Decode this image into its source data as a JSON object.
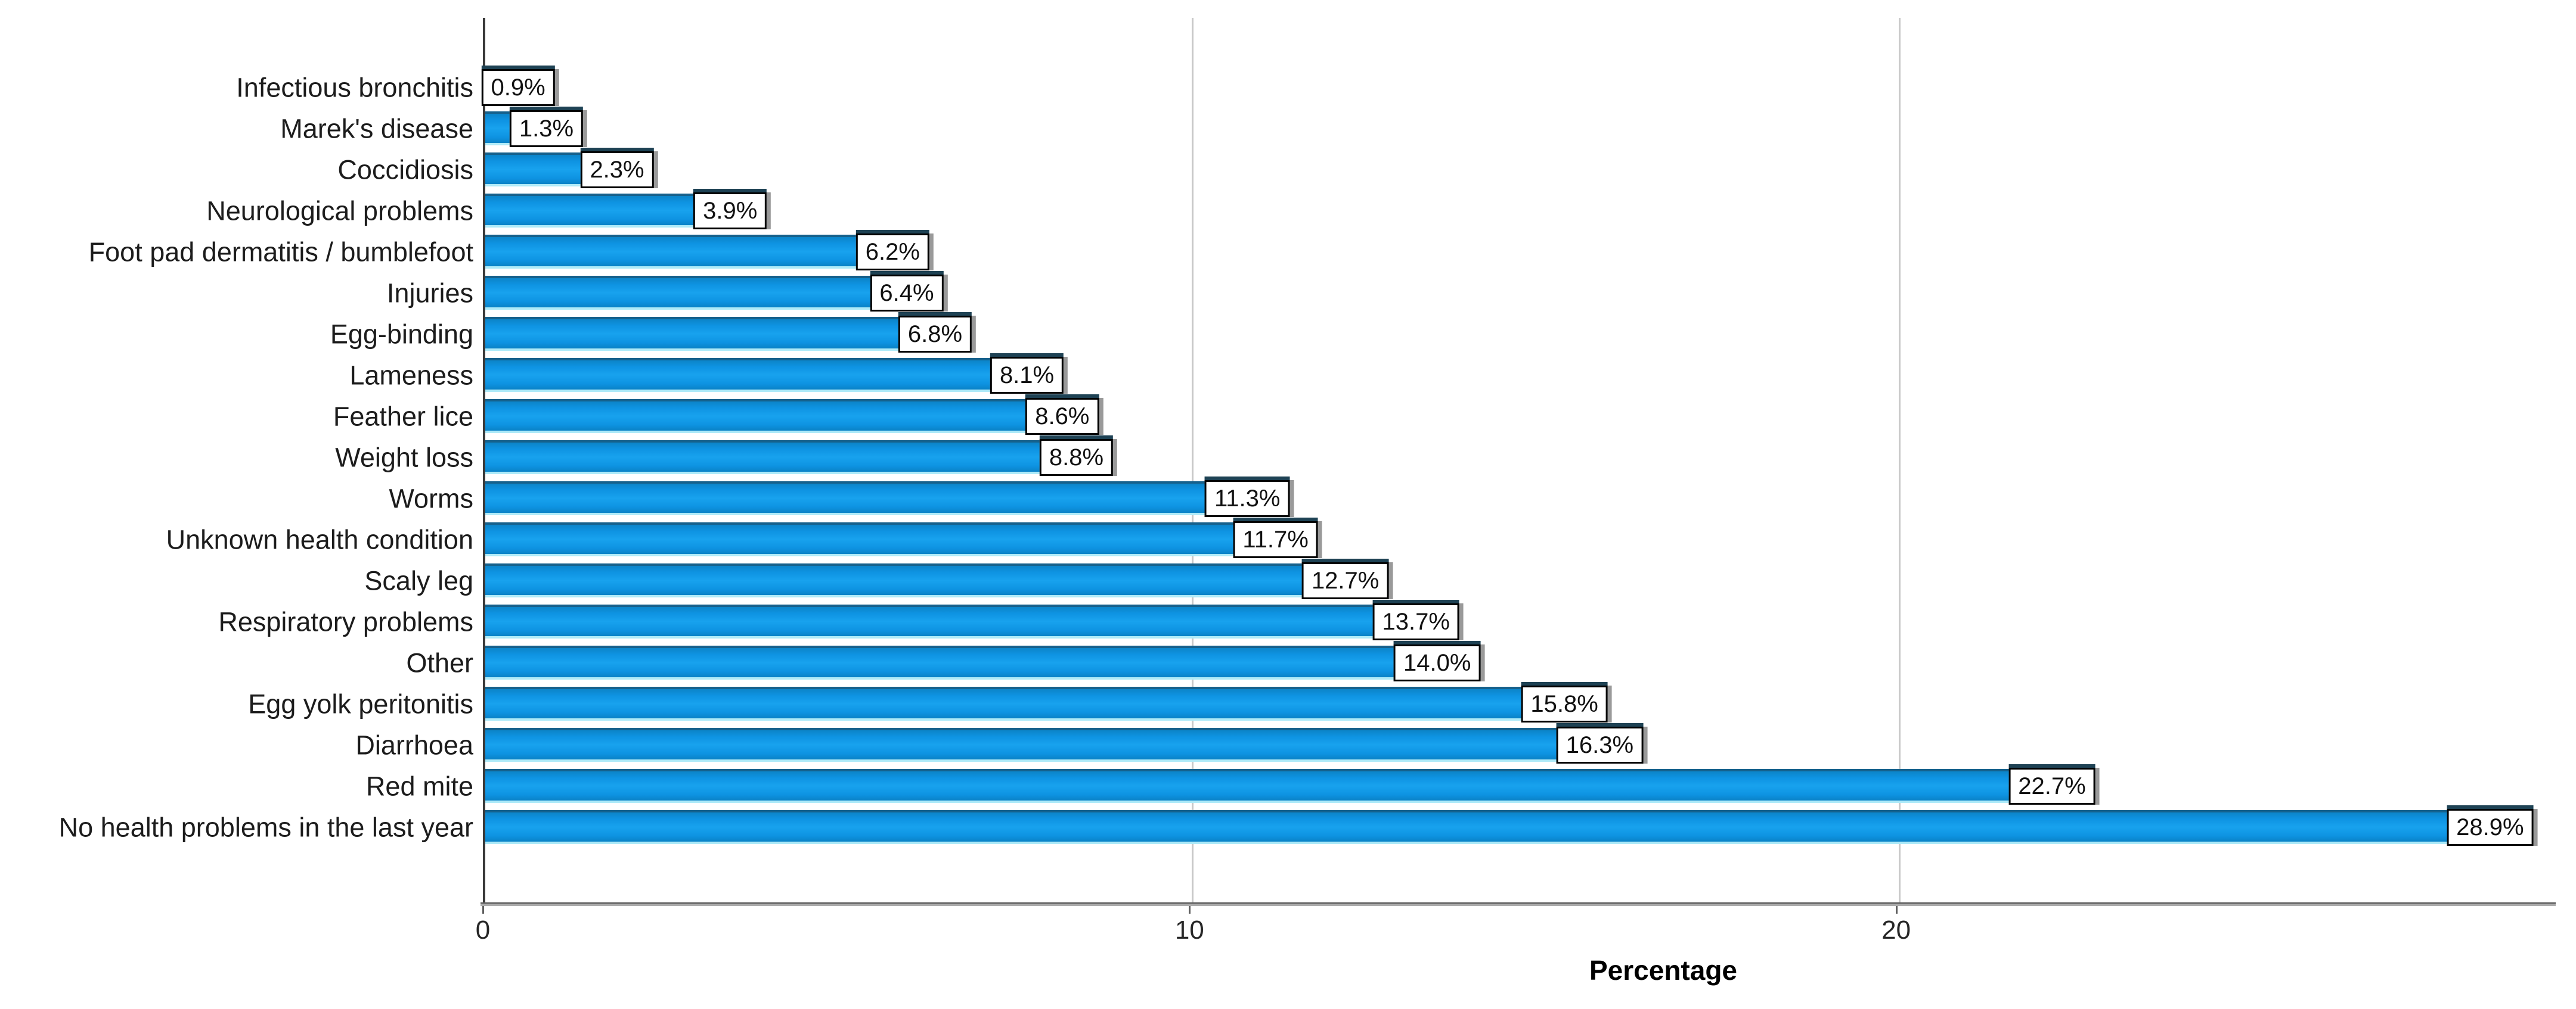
{
  "chart_data": {
    "type": "bar",
    "orientation": "horizontal",
    "title": "",
    "xlabel": "Percentage",
    "ylabel": "",
    "categories": [
      "Infectious bronchitis",
      "Marek's disease",
      "Coccidiosis",
      "Neurological problems",
      "Foot pad dermatitis / bumblefoot",
      "Injuries",
      "Egg-binding",
      "Lameness",
      "Feather lice",
      "Weight loss",
      "Worms",
      "Unknown health condition",
      "Scaly leg",
      "Respiratory problems",
      "Other",
      "Egg yolk peritonitis",
      "Diarrhoea",
      "Red mite",
      "No health problems in the last year"
    ],
    "values": [
      0.9,
      1.3,
      2.3,
      3.9,
      6.2,
      6.4,
      6.8,
      8.1,
      8.6,
      8.8,
      11.3,
      11.7,
      12.7,
      13.7,
      14.0,
      15.8,
      16.3,
      22.7,
      28.9
    ],
    "value_labels": [
      "0.9%",
      "1.3%",
      "2.3%",
      "3.9%",
      "6.2%",
      "6.4%",
      "6.8%",
      "8.1%",
      "8.6%",
      "8.8%",
      "11.3%",
      "11.7%",
      "12.7%",
      "13.7%",
      "14.0%",
      "15.8%",
      "16.3%",
      "22.7%",
      "28.9%"
    ],
    "x_ticks": [
      "0",
      "10",
      "20"
    ],
    "x_tick_values": [
      0,
      10,
      20
    ],
    "xlim": [
      0,
      29.3
    ],
    "grid": "vertical gridlines at 10 and 20",
    "legend_position": "none",
    "colors": {
      "bar_fill": "#0e93e2",
      "bar_top_edge": "#16618c",
      "bar_bottom_edge": "#aeeaf8",
      "label_box_bg": "#ffffff",
      "label_box_border": "#000000",
      "label_box_shadow_top": "#1e4254",
      "label_box_shadow_right": "#9a9a9a",
      "gridline": "#c9c9c9",
      "axis_line": "#5f5f5f"
    }
  }
}
